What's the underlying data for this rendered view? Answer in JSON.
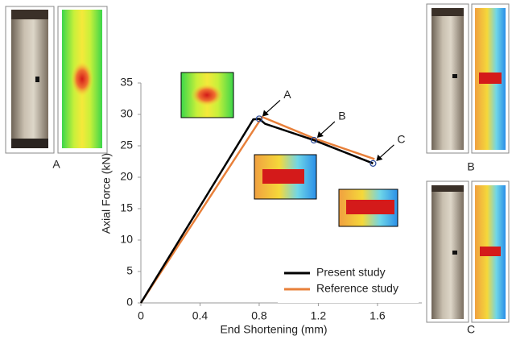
{
  "chart_data": {
    "type": "line",
    "x_label": "End Shortening (mm)",
    "y_label": "Axial Force (kN)",
    "xlim": [
      0,
      1.9
    ],
    "xticks": [
      0,
      0.4,
      0.8,
      1.2,
      1.6
    ],
    "ylim": [
      0,
      35
    ],
    "yticks": [
      0,
      5,
      10,
      15,
      20,
      25,
      30,
      35
    ],
    "legend": "lower right",
    "series": [
      {
        "name": "Present study",
        "color": "#000000",
        "x": [
          0,
          0.76,
          0.8,
          0.84,
          1.17,
          1.57
        ],
        "values": [
          0,
          29.2,
          29.3,
          28.5,
          25.9,
          22.2
        ]
      },
      {
        "name": "Reference study",
        "color": "#e8803a",
        "x": [
          0,
          0.82,
          1.17,
          1.58
        ],
        "values": [
          0,
          29.6,
          26.2,
          22.9
        ]
      }
    ],
    "annotations": [
      {
        "text": "A",
        "x": 0.8,
        "y": 29.3
      },
      {
        "text": "B",
        "x": 1.17,
        "y": 25.9
      },
      {
        "text": "C",
        "x": 1.57,
        "y": 22.2
      }
    ],
    "image_labels": [
      "A",
      "B",
      "C"
    ]
  }
}
